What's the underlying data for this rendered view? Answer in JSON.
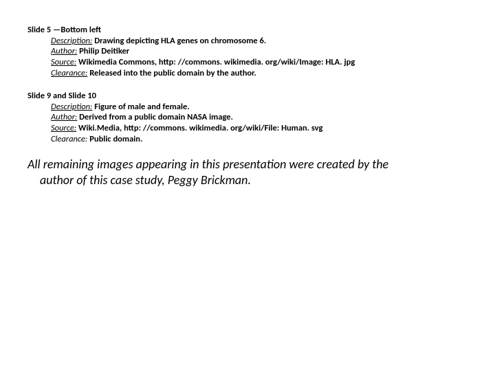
{
  "blocks": [
    {
      "title": "Slide 5 —Bottom left",
      "description": "Drawing depicting HLA genes on chromosome 6.",
      "author": "Philip Deitiker",
      "source": "Wikimedia Commons, http: //commons. wikimedia. org/wiki/Image: HLA. jpg",
      "clearance": "Released into the public domain by the author."
    },
    {
      "title": "Slide 9  and Slide 10",
      "description": "Figure of male and female.",
      "author": "Derived from a public domain NASA image.",
      "source": "Wiki.Media, http: //commons. wikimedia. org/wiki/File: Human. svg",
      "clearance": "Public domain."
    }
  ],
  "labels": {
    "description": "Description:",
    "author": "Author:",
    "source": "Source:",
    "clearance": "Clearance:"
  },
  "closing_line1": "All remaining images appearing in this presentation were created by the",
  "closing_line2": "author of this case study, Peggy Brickman."
}
